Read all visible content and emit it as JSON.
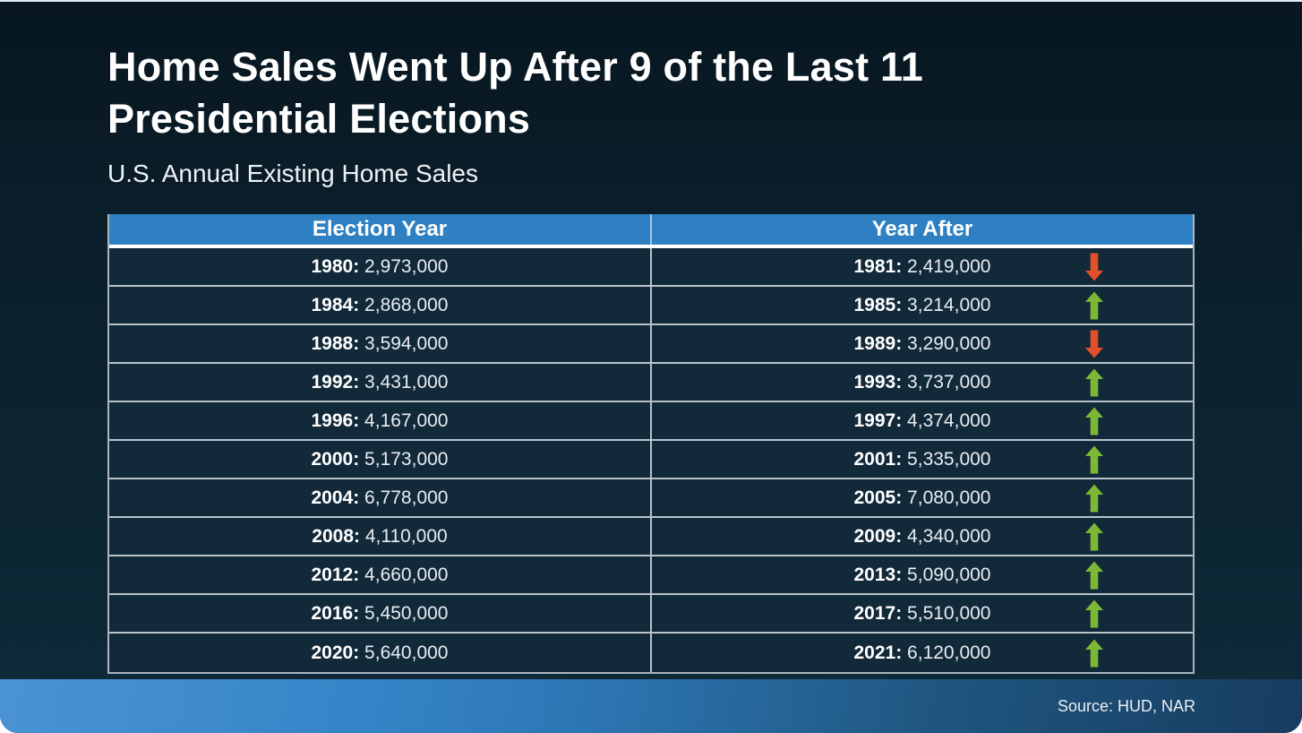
{
  "header": {
    "title_line1": "Home Sales Went Up After 9 of the Last 11",
    "title_line2": "Presidential Elections",
    "subtitle": "U.S. Annual Existing Home Sales"
  },
  "footer": {
    "source": "Source: HUD, NAR"
  },
  "colors": {
    "background_top": "#081720",
    "background_bottom": "#0f2b3a",
    "header_blue": "#2e80c2",
    "row_navy": "#12293a",
    "divider_gray": "#b9c3ca",
    "up_arrow": "#7cb836",
    "down_arrow": "#e2502a",
    "footer_blue_left": "#3584c7",
    "footer_blue_right": "#173c60",
    "text_white": "#ffffff"
  },
  "chart_data": {
    "type": "table",
    "title": "Home Sales Went Up After 9 of the Last 11 Presidential Elections",
    "subtitle": "U.S. Annual Existing Home Sales",
    "columns": [
      "Election Year",
      "Year After"
    ],
    "rows": [
      {
        "election_year": 1980,
        "election_sales": 2973000,
        "year_after": 1981,
        "year_after_sales": 2419000,
        "change": "down"
      },
      {
        "election_year": 1984,
        "election_sales": 2868000,
        "year_after": 1985,
        "year_after_sales": 3214000,
        "change": "up"
      },
      {
        "election_year": 1988,
        "election_sales": 3594000,
        "year_after": 1989,
        "year_after_sales": 3290000,
        "change": "down"
      },
      {
        "election_year": 1992,
        "election_sales": 3431000,
        "year_after": 1993,
        "year_after_sales": 3737000,
        "change": "up"
      },
      {
        "election_year": 1996,
        "election_sales": 4167000,
        "year_after": 1997,
        "year_after_sales": 4374000,
        "change": "up"
      },
      {
        "election_year": 2000,
        "election_sales": 5173000,
        "year_after": 2001,
        "year_after_sales": 5335000,
        "change": "up"
      },
      {
        "election_year": 2004,
        "election_sales": 6778000,
        "year_after": 2005,
        "year_after_sales": 7080000,
        "change": "up"
      },
      {
        "election_year": 2008,
        "election_sales": 4110000,
        "year_after": 2009,
        "year_after_sales": 4340000,
        "change": "up"
      },
      {
        "election_year": 2012,
        "election_sales": 4660000,
        "year_after": 2013,
        "year_after_sales": 5090000,
        "change": "up"
      },
      {
        "election_year": 2016,
        "election_sales": 5450000,
        "year_after": 2017,
        "year_after_sales": 5510000,
        "change": "up"
      },
      {
        "election_year": 2020,
        "election_sales": 5640000,
        "year_after": 2021,
        "year_after_sales": 6120000,
        "change": "up"
      }
    ],
    "source": "Source: HUD, NAR"
  }
}
